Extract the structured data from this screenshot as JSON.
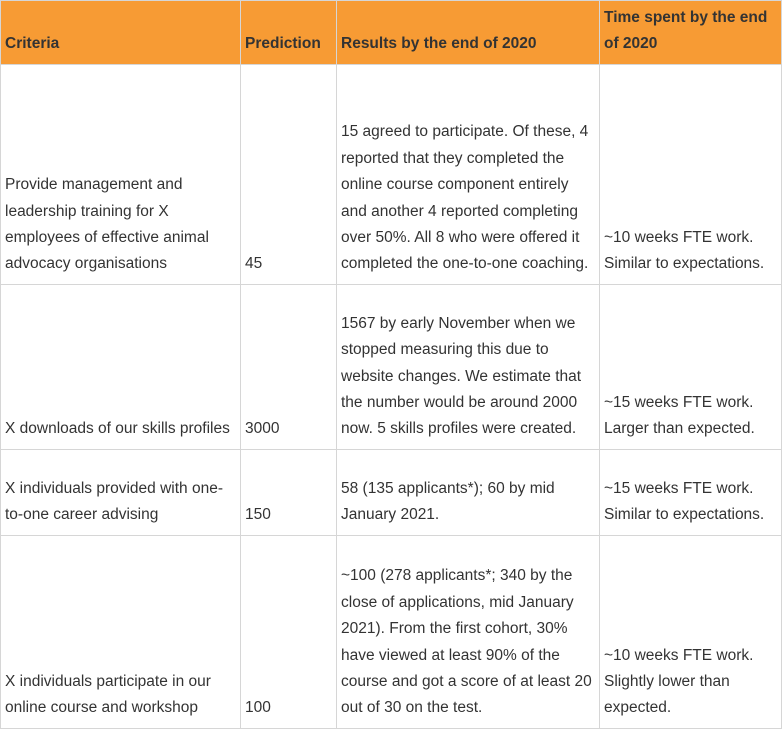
{
  "table": {
    "headers": [
      "Criteria",
      "Prediction",
      "Results by the end of 2020",
      "Time spent by the end of 2020"
    ],
    "rows": [
      {
        "criteria": "Provide management and leadership training for X employees of effective animal advocacy organisations",
        "prediction": "45",
        "results": "15 agreed to participate. Of these, 4 reported that they completed the online course component entirely and another 4 reported completing over 50%. All 8 who were offered it completed the one-to-one coaching.",
        "time": "~10 weeks FTE work. Similar to expectations."
      },
      {
        "criteria": "X downloads of our skills profiles",
        "prediction": "3000",
        "results": "1567 by early November when we stopped measuring this due to website changes. We estimate that the number would be around 2000 now. 5 skills profiles were created.",
        "time": "~15 weeks FTE work. Larger than expected."
      },
      {
        "criteria": "X individuals provided with one-to-one career advising",
        "prediction": "150",
        "results": "58 (135 applicants*); 60 by mid January 2021.",
        "time": "~15 weeks FTE work. Similar to expectations."
      },
      {
        "criteria": "X individuals participate in our online course and workshop",
        "prediction": "100",
        "results": "~100 (278 applicants*; 340 by the close of applications, mid January 2021). From the first cohort, 30% have viewed at least 90% of the course and got a score of at least 20 out of 30 on the test.",
        "time": "~10 weeks FTE work. Slightly lower than expected."
      }
    ]
  },
  "colors": {
    "header_bg": "#f79b34",
    "border": "#d6d6d6",
    "text": "#333333"
  }
}
